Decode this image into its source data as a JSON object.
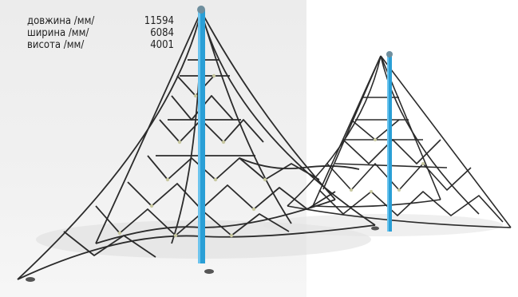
{
  "specs": [
    {
      "label": "довжина /мм/",
      "value": "11594"
    },
    {
      "label": "ширина /мм/",
      "value": "6084"
    },
    {
      "label": "висота /мм/",
      "value": "4001"
    }
  ],
  "colors": {
    "backdrop": "#eeeeee",
    "pole": "#2a9fd6",
    "rope": "#2b2b2b",
    "connector": "#c8c8a0",
    "text": "#222222"
  },
  "image": {
    "subject": "rope pyramid climbing net playground structure",
    "icons": [
      "rope-net-pyramid-large",
      "rope-net-pyramid-small",
      "blue-pole"
    ]
  }
}
